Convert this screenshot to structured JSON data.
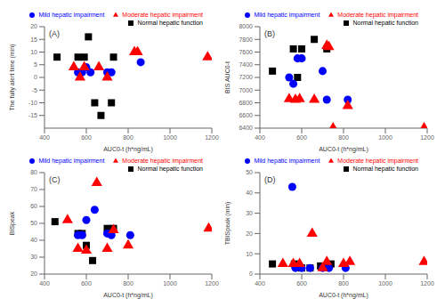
{
  "chart_data": [
    {
      "type": "scatter",
      "annotations": [
        "(A)"
      ],
      "x_label": "AUC0-t (h*ng/mL)",
      "y_label": "The fully alert time (min)",
      "xlim": [
        400,
        1200
      ],
      "ylim": [
        -20,
        20
      ],
      "xticks": [
        400,
        600,
        800,
        1000,
        1200
      ],
      "yticks": [
        -15,
        -10,
        -5,
        0,
        5,
        10,
        15,
        20
      ],
      "grid": false,
      "legend": "upper right",
      "series": [
        {
          "name": "Normal hepatic function",
          "color": "black",
          "marker": "square",
          "x": [
            460,
            560,
            590,
            610,
            640,
            670,
            720,
            730
          ],
          "values": [
            8,
            8,
            8,
            16,
            -10,
            -15,
            -10,
            8
          ]
        },
        {
          "name": "Mild hepatic impairment",
          "color": "blue",
          "marker": "circle",
          "x": [
            560,
            580,
            600,
            620,
            700,
            720,
            860
          ],
          "values": [
            2,
            2,
            4,
            2,
            2,
            2,
            6
          ]
        },
        {
          "name": "Moderate hepatic impairment",
          "color": "red",
          "marker": "triangle",
          "x": [
            540,
            570,
            590,
            660,
            700,
            830,
            845,
            1180
          ],
          "values": [
            4,
            0,
            4,
            4,
            0,
            10,
            10,
            8
          ]
        }
      ]
    },
    {
      "type": "scatter",
      "annotations": [
        "(B)"
      ],
      "x_label": "AUC0-t (h*ng/mL)",
      "y_label": "BIS AUC0-t",
      "xlim": [
        400,
        1200
      ],
      "ylim": [
        6400,
        8000
      ],
      "xticks": [
        400,
        600,
        800,
        1000,
        1200
      ],
      "yticks": [
        6400,
        6600,
        6800,
        7000,
        7200,
        7400,
        7600,
        7800,
        8000
      ],
      "grid": false,
      "legend": "upper right",
      "series": [
        {
          "name": "Normal hepatic function",
          "color": "black",
          "marker": "square",
          "x": [
            460,
            560,
            580,
            600,
            660,
            720
          ],
          "values": [
            7300,
            7650,
            7200,
            7650,
            7800,
            7650
          ]
        },
        {
          "name": "Mild hepatic impairment",
          "color": "blue",
          "marker": "circle",
          "x": [
            540,
            560,
            580,
            600,
            700,
            720,
            820
          ],
          "values": [
            7200,
            7100,
            7500,
            7500,
            7300,
            6850,
            6850
          ]
        },
        {
          "name": "Moderate hepatic impairment",
          "color": "red",
          "marker": "triangle",
          "x": [
            540,
            570,
            590,
            660,
            720,
            730,
            750,
            820,
            1185
          ],
          "values": [
            6860,
            6850,
            6860,
            6850,
            7700,
            7680,
            6400,
            6750,
            6400
          ]
        }
      ]
    },
    {
      "type": "scatter",
      "annotations": [
        "(C)"
      ],
      "x_label": "AUC0-t (h*ng/mL)",
      "y_label": "BISpeak",
      "xlim": [
        400,
        1200
      ],
      "ylim": [
        20,
        80
      ],
      "xticks": [
        400,
        600,
        800,
        1000,
        1200
      ],
      "yticks": [
        20,
        30,
        40,
        50,
        60,
        70,
        80
      ],
      "grid": false,
      "legend": "upper right",
      "series": [
        {
          "name": "Normal hepatic function",
          "color": "black",
          "marker": "square",
          "x": [
            450,
            560,
            580,
            600,
            630,
            700,
            730
          ],
          "values": [
            51,
            44,
            44,
            37,
            28,
            47,
            47
          ]
        },
        {
          "name": "Mild hepatic impairment",
          "color": "blue",
          "marker": "circle",
          "x": [
            560,
            580,
            600,
            640,
            700,
            720,
            810
          ],
          "values": [
            43,
            43,
            52,
            58,
            44,
            43,
            43
          ]
        },
        {
          "name": "Moderate hepatic impairment",
          "color": "red",
          "marker": "triangle",
          "x": [
            510,
            560,
            600,
            650,
            700,
            730,
            800,
            1185
          ],
          "values": [
            52,
            35,
            34,
            74,
            35,
            46,
            37,
            47
          ]
        }
      ]
    },
    {
      "type": "scatter",
      "annotations": [
        "(D)"
      ],
      "x_label": "AUC0-t (h*ng/mL)",
      "y_label": "TBISpeak (min)",
      "xlim": [
        400,
        1200
      ],
      "ylim": [
        0,
        50
      ],
      "xticks": [
        400,
        600,
        800,
        1000,
        1200
      ],
      "yticks": [
        0,
        10,
        20,
        30,
        40,
        50
      ],
      "grid": false,
      "legend": "upper right",
      "series": [
        {
          "name": "Normal hepatic function",
          "color": "black",
          "marker": "square",
          "x": [
            460,
            565,
            580,
            600,
            640,
            690,
            720,
            740
          ],
          "values": [
            5,
            5,
            4,
            3,
            3,
            4,
            4,
            5
          ]
        },
        {
          "name": "Mild hepatic impairment",
          "color": "blue",
          "marker": "circle",
          "x": [
            555,
            570,
            600,
            640,
            700,
            730,
            810
          ],
          "values": [
            43,
            3,
            3,
            3,
            3,
            3,
            3
          ]
        },
        {
          "name": "Moderate hepatic impairment",
          "color": "red",
          "marker": "triangle",
          "x": [
            510,
            560,
            590,
            650,
            700,
            720,
            800,
            830,
            1185
          ],
          "values": [
            5,
            5,
            5,
            20,
            3,
            6,
            5,
            6,
            6
          ]
        }
      ]
    }
  ]
}
